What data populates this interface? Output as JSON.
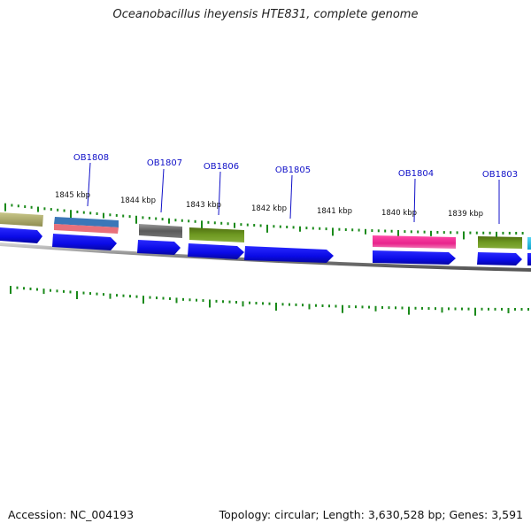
{
  "title": "Oceanobacillus iheyensis HTE831, complete genome",
  "accession": "Accession: NC_004193",
  "summary": "Topology: circular; Length: 3,630,528 bp; Genes: 3,591",
  "colors": {
    "backbone": "#8c8c8c",
    "tick": "#1a8a1a",
    "gene_label": "#1010c8",
    "cds_blue": "#0a0ae6"
  },
  "gene_labels": [
    "OB1808",
    "OB1807",
    "OB1806",
    "OB1805",
    "OB1804",
    "OB1803"
  ],
  "kbp_labels": [
    "1845 kbp",
    "1844 kbp",
    "1843 kbp",
    "1842 kbp",
    "1841 kbp",
    "1840 kbp",
    "1839 kbp"
  ],
  "feature_colors": {
    "OB1809": "#a9a86a",
    "OB1808": [
      "#3b77b8",
      "#e8707a"
    ],
    "OB1807": "#6a6a6a",
    "OB1806": "#6b8e23",
    "OB1804": "#e8238c",
    "OB1803": "#6b8e23",
    "next": "#18b8e0"
  }
}
